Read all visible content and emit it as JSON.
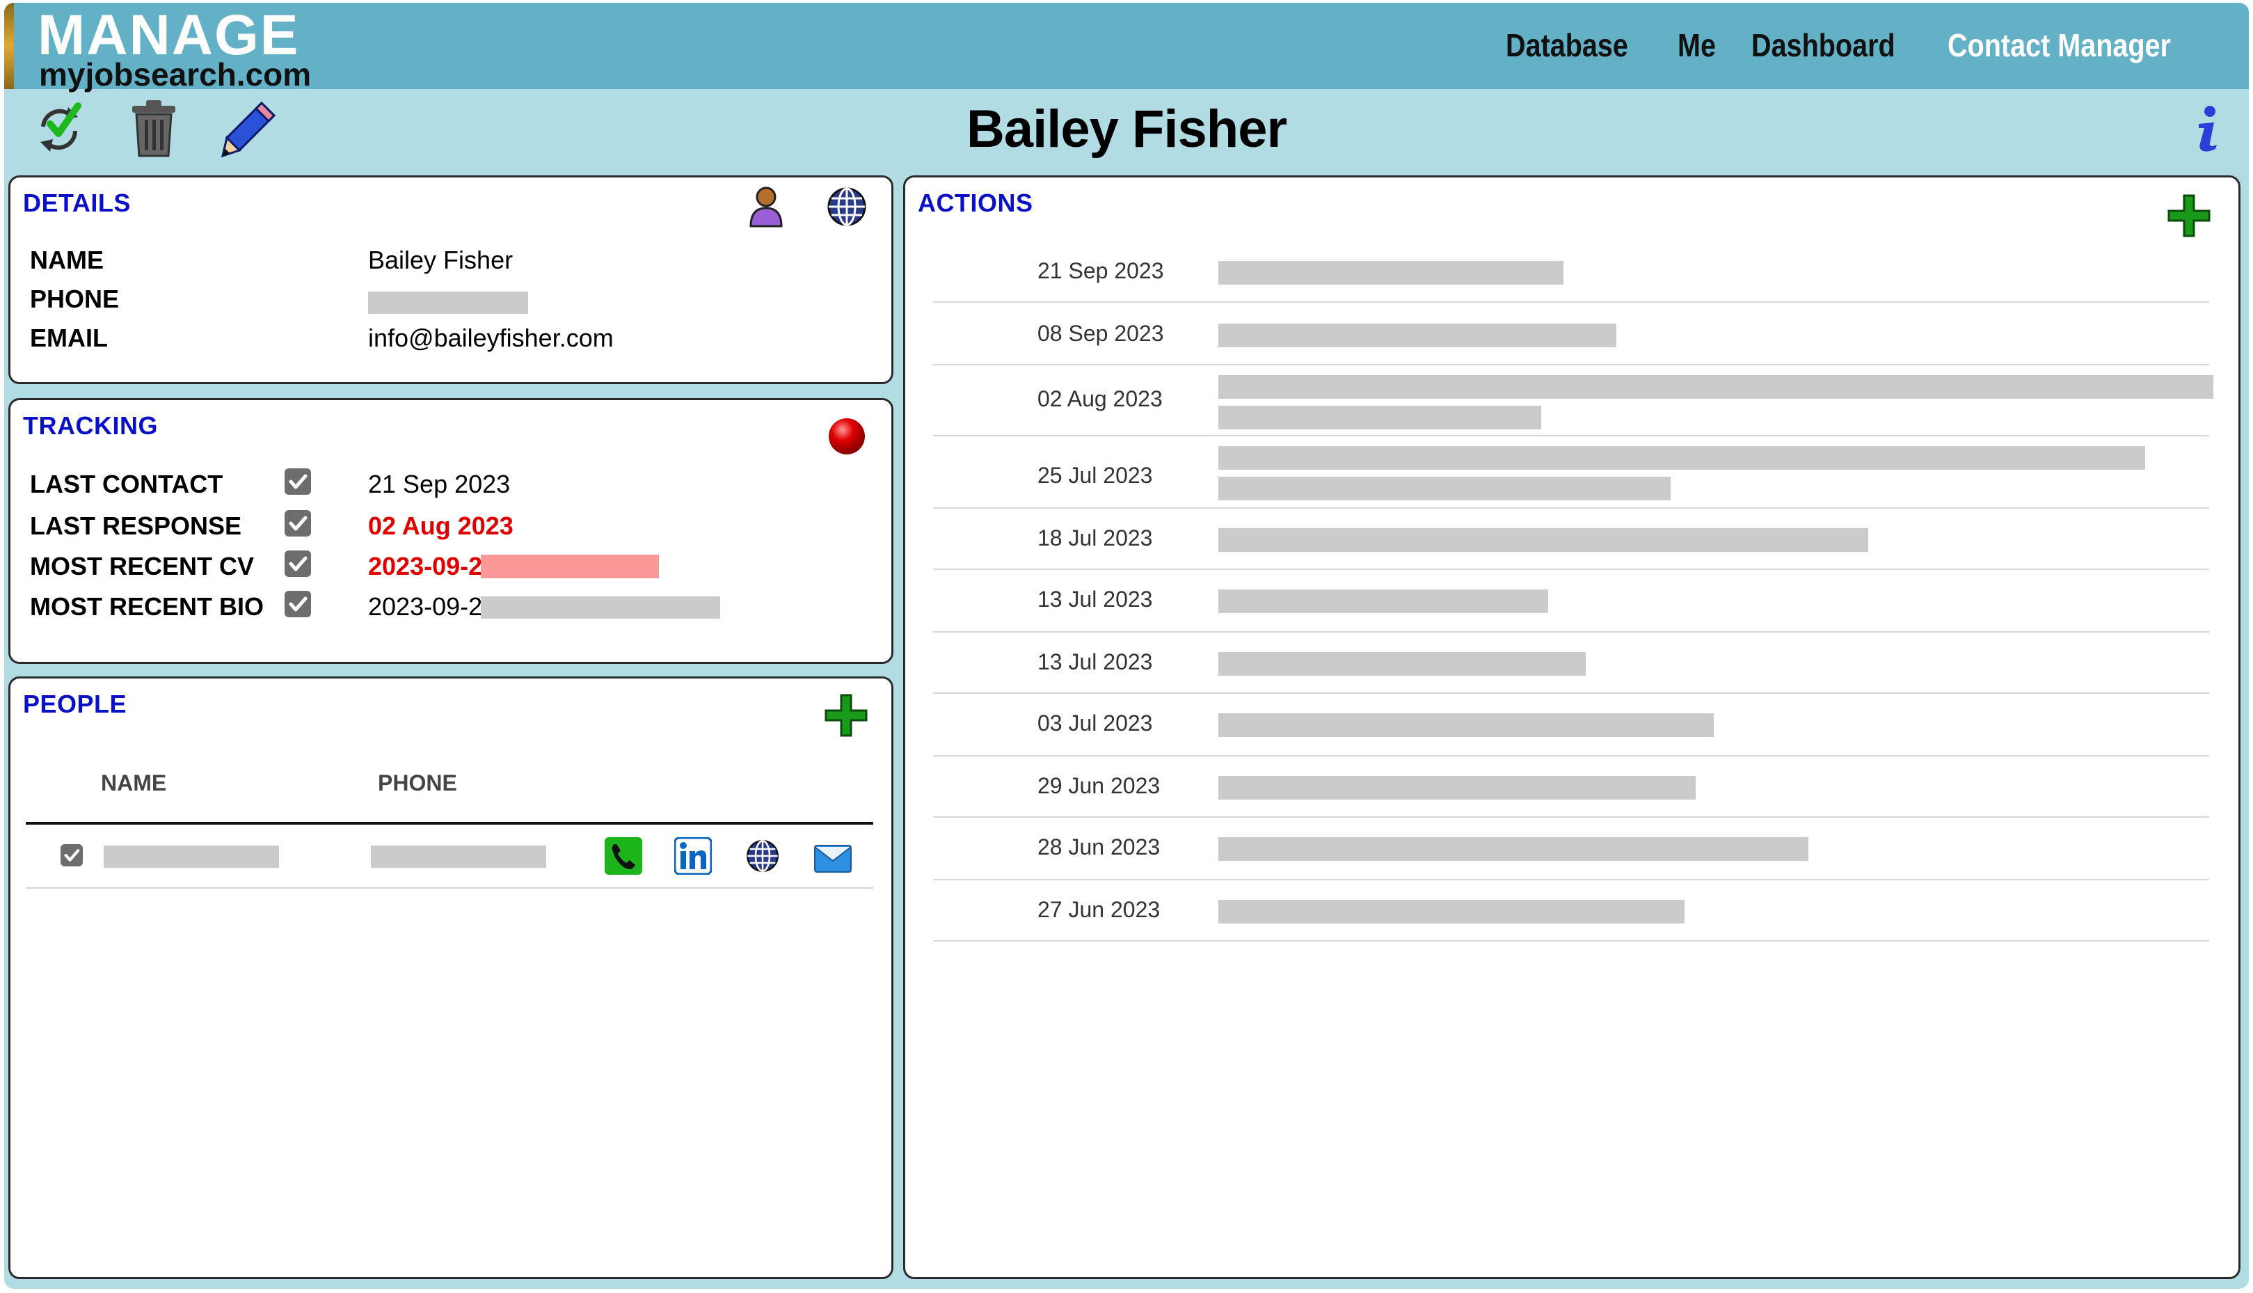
{
  "header": {
    "logo_main": "MANAGE",
    "logo_sub": "myjobsearch.com",
    "nav": [
      {
        "label": "Database",
        "active": false
      },
      {
        "label": "Me",
        "active": false
      },
      {
        "label": "Dashboard",
        "active": false
      },
      {
        "label": "Contact Manager",
        "active": true
      }
    ]
  },
  "toolbar": {
    "icons": [
      "refresh-check-icon",
      "trash-icon",
      "pencil-icon"
    ],
    "info_icon": "info-icon"
  },
  "page_title": "Bailey Fisher",
  "details": {
    "title": "DETAILS",
    "icons": [
      "person-icon",
      "globe-icon"
    ],
    "name_label": "NAME",
    "name_value": "Bailey Fisher",
    "phone_label": "PHONE",
    "email_label": "EMAIL",
    "email_value": "info@baileyfisher.com"
  },
  "tracking": {
    "title": "TRACKING",
    "status_icon": "red-status-dot-icon",
    "rows": [
      {
        "label": "LAST CONTACT",
        "checked": true,
        "value": "21 Sep 2023",
        "highlight": false
      },
      {
        "label": "LAST RESPONSE",
        "checked": true,
        "value": "02 Aug 2023",
        "highlight": true
      },
      {
        "label": "MOST RECENT CV",
        "checked": true,
        "value": "2023-09-21",
        "highlight": true
      },
      {
        "label": "MOST RECENT BIO",
        "checked": true,
        "value": "2023-09-21",
        "highlight": false
      }
    ]
  },
  "people": {
    "title": "PEOPLE",
    "columns": [
      "NAME",
      "PHONE"
    ],
    "row_icons": [
      "phone-icon",
      "linkedin-icon",
      "globe-icon",
      "email-icon"
    ]
  },
  "actions": {
    "title": "ACTIONS",
    "rows": [
      {
        "date": "21 Sep 2023"
      },
      {
        "date": "08 Sep 2023"
      },
      {
        "date": "02 Aug 2023"
      },
      {
        "date": "25 Jul 2023"
      },
      {
        "date": "18 Jul 2023"
      },
      {
        "date": "13 Jul 2023"
      },
      {
        "date": "13 Jul 2023"
      },
      {
        "date": "03 Jul 2023"
      },
      {
        "date": "29 Jun 2023"
      },
      {
        "date": "28 Jun 2023"
      },
      {
        "date": "27 Jun 2023"
      }
    ]
  },
  "colors": {
    "topbar": "#62b1c6",
    "background": "#b2dce4",
    "panel_title": "#0a10c8",
    "highlight_red": "#e00000",
    "redaction": "#cbcbcb"
  }
}
